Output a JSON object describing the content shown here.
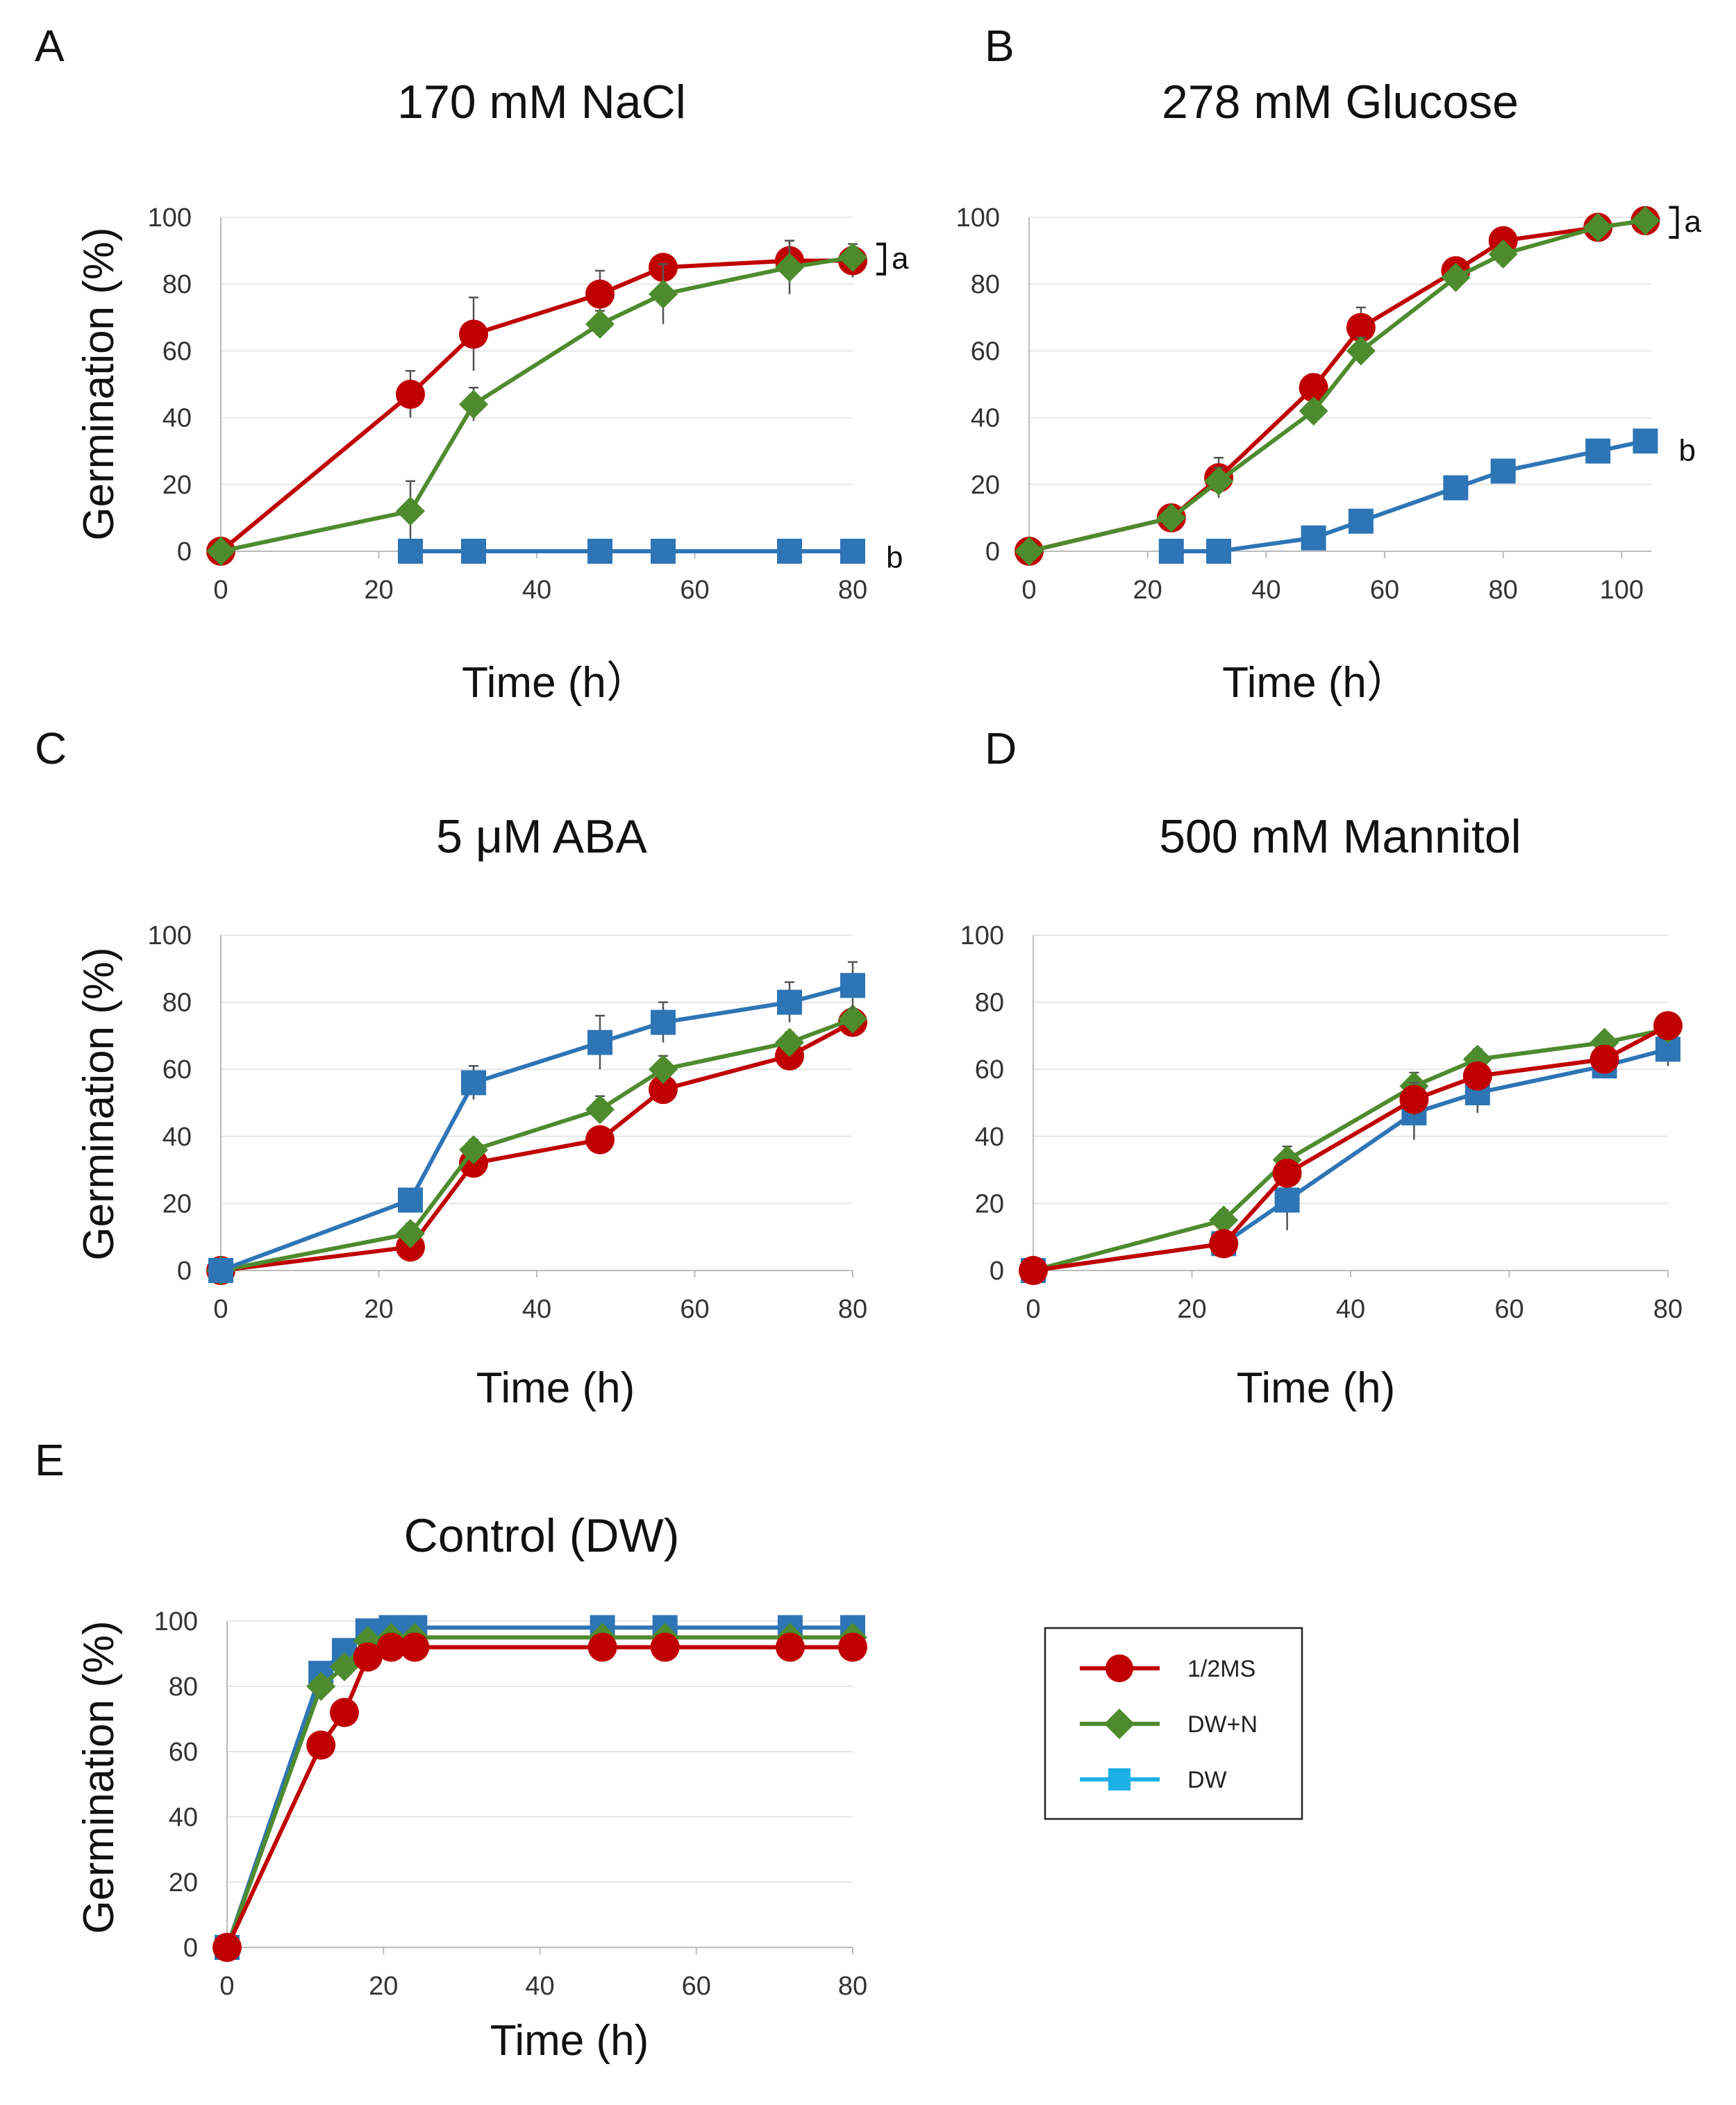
{
  "colors": {
    "ms": "#C00000",
    "dwn": "#4E8B2E",
    "dw": "#2E75B6",
    "legend_dw": "#1CB0E6",
    "grid": "#E6E6E6",
    "axis": "#BBBBBB"
  },
  "legend": [
    {
      "key": "ms",
      "label": "1/2MS",
      "marker": "circle"
    },
    {
      "key": "dwn",
      "label": "DW+N",
      "marker": "diamond"
    },
    {
      "key": "dw",
      "label": "DW",
      "marker": "square"
    }
  ],
  "chart_data": [
    {
      "id": "A",
      "letter": "A",
      "type": "line",
      "title": "170 mM NaCl",
      "xlabel": "Time (h）",
      "ylabel": "Germination (%)",
      "xlim": [
        0,
        80
      ],
      "ylim": [
        0,
        100
      ],
      "xticks": [
        0,
        20,
        40,
        60,
        80
      ],
      "yticks": [
        0,
        20,
        40,
        60,
        80,
        100
      ],
      "series": [
        {
          "key": "ms",
          "name": "1/2MS",
          "x": [
            0,
            24,
            32,
            48,
            56,
            72,
            80
          ],
          "values": [
            0,
            47,
            65,
            77,
            85,
            87,
            87
          ],
          "err": [
            0,
            7,
            11,
            7,
            3,
            6,
            5
          ]
        },
        {
          "key": "dwn",
          "name": "DW+N",
          "x": [
            0,
            24,
            32,
            48,
            56,
            72,
            80
          ],
          "values": [
            0,
            12,
            44,
            68,
            77,
            85,
            88
          ],
          "err": [
            0,
            9,
            5,
            4,
            9,
            8,
            3
          ]
        },
        {
          "key": "dw",
          "name": "DW",
          "x": [
            24,
            32,
            48,
            56,
            72,
            80
          ],
          "values": [
            0,
            0,
            0,
            0,
            0,
            0
          ],
          "err": [
            0,
            0,
            0,
            0,
            0,
            0
          ]
        }
      ],
      "annotations": [
        {
          "text": "a",
          "bracket": [
            83,
            92
          ],
          "x_end": 80
        },
        {
          "text": "b",
          "y": -2,
          "x_end": 80
        }
      ]
    },
    {
      "id": "B",
      "letter": "B",
      "type": "line",
      "title": "278 mM Glucose",
      "xlabel": "Time (h）",
      "ylabel": "",
      "xlim": [
        0,
        105
      ],
      "ylim": [
        0,
        100
      ],
      "xticks": [
        0,
        20,
        40,
        60,
        80,
        100
      ],
      "yticks": [
        0,
        20,
        40,
        60,
        80,
        100
      ],
      "series": [
        {
          "key": "ms",
          "name": "1/2MS",
          "x": [
            0,
            24,
            32,
            48,
            56,
            72,
            80,
            96,
            104
          ],
          "values": [
            0,
            10,
            22,
            49,
            67,
            84,
            93,
            97,
            99
          ],
          "err": [
            0,
            2,
            6,
            4,
            6,
            3,
            2,
            1,
            1
          ]
        },
        {
          "key": "dwn",
          "name": "DW+N",
          "x": [
            0,
            24,
            32,
            48,
            56,
            72,
            80,
            96,
            104
          ],
          "values": [
            0,
            10,
            21,
            42,
            60,
            82,
            89,
            97,
            99
          ],
          "err": [
            0,
            2,
            4,
            3,
            4,
            3,
            2,
            1,
            1
          ]
        },
        {
          "key": "dw",
          "name": "DW",
          "x": [
            24,
            32,
            48,
            56,
            72,
            80,
            96,
            104
          ],
          "values": [
            0,
            0,
            4,
            9,
            19,
            24,
            30,
            33
          ],
          "err": [
            0,
            0,
            1,
            2,
            2,
            2,
            2,
            2
          ]
        }
      ],
      "annotations": [
        {
          "text": "a",
          "bracket": [
            94,
            103
          ],
          "x_end": 104
        },
        {
          "text": "b",
          "y": 30,
          "x_end": 104
        }
      ]
    },
    {
      "id": "C",
      "letter": "C",
      "type": "line",
      "title": "5 μM ABA",
      "xlabel": "Time (h)",
      "ylabel": "Germination (%)",
      "xlim": [
        0,
        80
      ],
      "ylim": [
        0,
        100
      ],
      "xticks": [
        0,
        20,
        40,
        60,
        80
      ],
      "yticks": [
        0,
        20,
        40,
        60,
        80,
        100
      ],
      "series": [
        {
          "key": "ms",
          "name": "1/2MS",
          "x": [
            0,
            24,
            32,
            48,
            56,
            72,
            80
          ],
          "values": [
            0,
            7,
            32,
            39,
            54,
            64,
            74
          ],
          "err": [
            0,
            2,
            3,
            3,
            4,
            3,
            3
          ]
        },
        {
          "key": "dwn",
          "name": "DW+N",
          "x": [
            0,
            24,
            32,
            48,
            56,
            72,
            80
          ],
          "values": [
            0,
            11,
            36,
            48,
            60,
            68,
            75
          ],
          "err": [
            0,
            3,
            3,
            4,
            4,
            3,
            3
          ]
        },
        {
          "key": "dw",
          "name": "DW",
          "x": [
            0,
            24,
            32,
            48,
            56,
            72,
            80
          ],
          "values": [
            0,
            21,
            56,
            68,
            74,
            80,
            85
          ],
          "err": [
            0,
            3,
            5,
            8,
            6,
            6,
            7
          ]
        }
      ],
      "annotations": []
    },
    {
      "id": "D",
      "letter": "D",
      "type": "line",
      "title": "500 mM Mannitol",
      "xlabel": "Time (h)",
      "ylabel": "",
      "xlim": [
        0,
        80
      ],
      "ylim": [
        0,
        100
      ],
      "xticks": [
        0,
        20,
        40,
        60,
        80
      ],
      "yticks": [
        0,
        20,
        40,
        60,
        80,
        100
      ],
      "series": [
        {
          "key": "dw",
          "name": "DW",
          "x": [
            0,
            24,
            32,
            48,
            56,
            72,
            80
          ],
          "values": [
            0,
            8,
            21,
            47,
            53,
            61,
            66
          ],
          "err": [
            0,
            4,
            9,
            8,
            6,
            3,
            5
          ]
        },
        {
          "key": "dwn",
          "name": "DW+N",
          "x": [
            0,
            24,
            32,
            48,
            56,
            72,
            80
          ],
          "values": [
            0,
            15,
            33,
            55,
            63,
            68,
            72
          ],
          "err": [
            0,
            3,
            4,
            4,
            3,
            2,
            2
          ]
        },
        {
          "key": "ms",
          "name": "1/2MS",
          "x": [
            0,
            24,
            32,
            48,
            56,
            72,
            80
          ],
          "values": [
            0,
            8,
            29,
            51,
            58,
            63,
            73
          ],
          "err": [
            0,
            3,
            4,
            5,
            4,
            3,
            3
          ]
        }
      ],
      "annotations": []
    },
    {
      "id": "E",
      "letter": "E",
      "type": "line",
      "title": "Control (DW)",
      "xlabel": "Time (h)",
      "ylabel": "Germination (%)",
      "xlim": [
        0,
        80
      ],
      "ylim": [
        0,
        100
      ],
      "xticks": [
        0,
        20,
        40,
        60,
        80
      ],
      "yticks": [
        0,
        20,
        40,
        60,
        80,
        100
      ],
      "series": [
        {
          "key": "dw",
          "name": "DW",
          "x": [
            0,
            12,
            15,
            18,
            21,
            24,
            48,
            56,
            72,
            80
          ],
          "values": [
            0,
            84,
            91,
            97,
            98,
            98,
            98,
            98,
            98,
            98
          ],
          "err": [
            0,
            2,
            2,
            1,
            1,
            1,
            1,
            1,
            1,
            1
          ]
        },
        {
          "key": "dwn",
          "name": "DW+N",
          "x": [
            0,
            12,
            15,
            18,
            21,
            24,
            48,
            56,
            72,
            80
          ],
          "values": [
            0,
            80,
            86,
            94,
            95,
            95,
            95,
            95,
            95,
            95
          ],
          "err": [
            0,
            2,
            2,
            1,
            1,
            1,
            1,
            1,
            1,
            1
          ]
        },
        {
          "key": "ms",
          "name": "1/2MS",
          "x": [
            0,
            12,
            15,
            18,
            21,
            24,
            48,
            56,
            72,
            80
          ],
          "values": [
            0,
            62,
            72,
            89,
            92,
            92,
            92,
            92,
            92,
            92
          ],
          "err": [
            0,
            2,
            2,
            2,
            1,
            1,
            1,
            1,
            1,
            1
          ]
        }
      ],
      "annotations": []
    }
  ]
}
